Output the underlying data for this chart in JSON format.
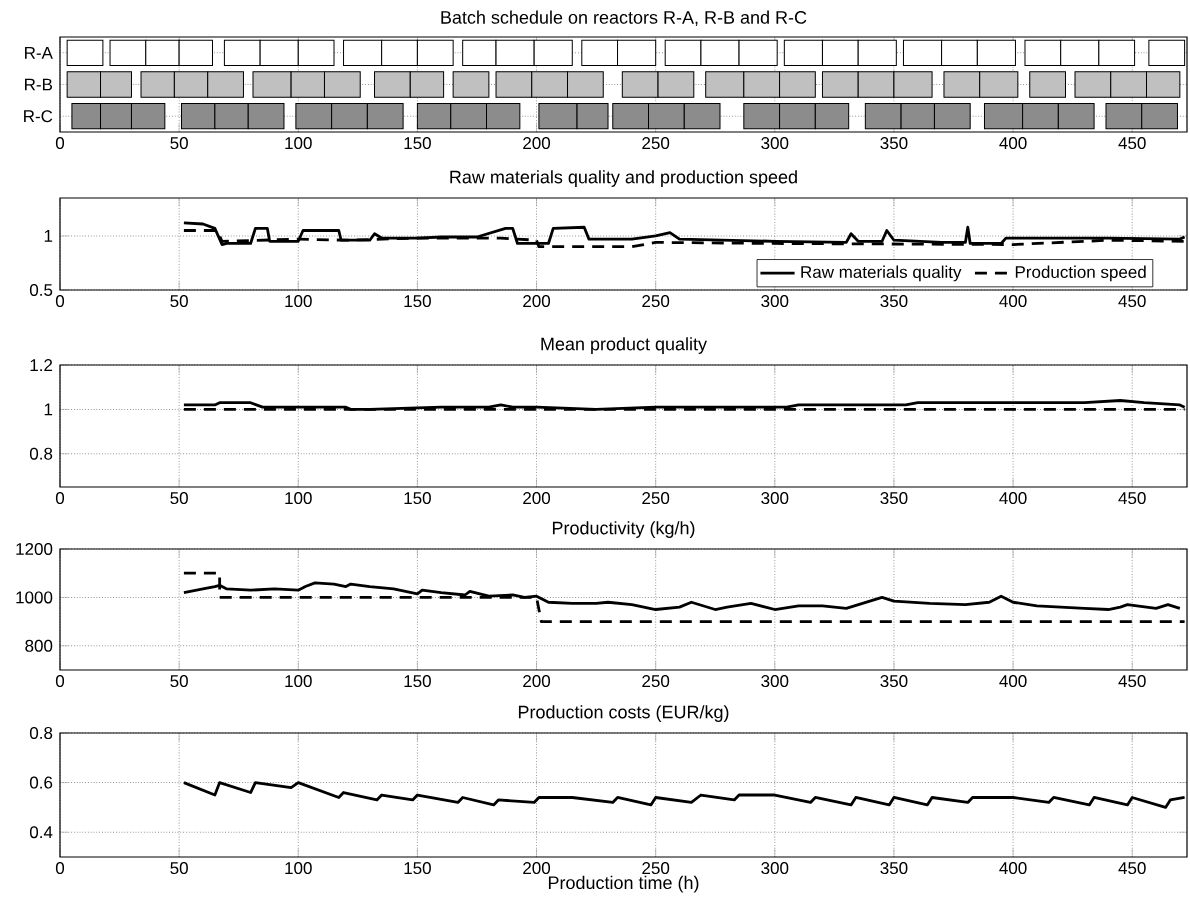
{
  "chart_data": [
    {
      "type": "bar",
      "orientation": "horizontal",
      "title": "Batch schedule on reactors R-A, R-B and R-C",
      "categories": [
        "R-A",
        "R-B",
        "R-C"
      ],
      "xlim": [
        0,
        473
      ],
      "xticks": [
        0,
        50,
        100,
        150,
        200,
        250,
        300,
        350,
        400,
        450
      ],
      "grid": true,
      "series": [
        {
          "base": [
            3,
            3,
            5
          ],
          "values": [
            15,
            14,
            12
          ],
          "colors": [
            "#ffffff",
            "#c0c0c0",
            "#8c8c8c"
          ]
        },
        {
          "base": [
            21,
            17,
            17
          ],
          "values": [
            15,
            13,
            13
          ],
          "colors": [
            "#ffffff",
            "#c0c0c0",
            "#8c8c8c"
          ]
        },
        {
          "base": [
            36,
            34,
            30
          ],
          "values": [
            14,
            14,
            14
          ],
          "colors": [
            "#ffffff",
            "#c0c0c0",
            "#8c8c8c"
          ]
        },
        {
          "base": [
            50,
            48,
            51
          ],
          "values": [
            14,
            14,
            14
          ],
          "colors": [
            "#ffffff",
            "#c0c0c0",
            "#8c8c8c"
          ]
        },
        {
          "base": [
            69,
            62,
            65
          ],
          "values": [
            15,
            15,
            14
          ],
          "colors": [
            "#ffffff",
            "#c0c0c0",
            "#8c8c8c"
          ]
        },
        {
          "base": [
            84,
            81,
            79
          ],
          "values": [
            16,
            16,
            15
          ],
          "colors": [
            "#ffffff",
            "#c0c0c0",
            "#8c8c8c"
          ]
        },
        {
          "base": [
            100,
            97,
            99
          ],
          "values": [
            15,
            14,
            15
          ],
          "colors": [
            "#ffffff",
            "#c0c0c0",
            "#8c8c8c"
          ]
        },
        {
          "base": [
            119,
            111,
            114
          ],
          "values": [
            16,
            15,
            15
          ],
          "colors": [
            "#ffffff",
            "#c0c0c0",
            "#8c8c8c"
          ]
        },
        {
          "base": [
            135,
            132,
            129
          ],
          "values": [
            15,
            15,
            15
          ],
          "colors": [
            "#ffffff",
            "#c0c0c0",
            "#8c8c8c"
          ]
        },
        {
          "base": [
            150,
            147,
            150
          ],
          "values": [
            15,
            14,
            14
          ],
          "colors": [
            "#ffffff",
            "#c0c0c0",
            "#8c8c8c"
          ]
        },
        {
          "base": [
            169,
            165,
            164
          ],
          "values": [
            14,
            15,
            15
          ],
          "colors": [
            "#ffffff",
            "#c0c0c0",
            "#8c8c8c"
          ]
        },
        {
          "base": [
            183,
            183,
            179
          ],
          "values": [
            16,
            15,
            14
          ],
          "colors": [
            "#ffffff",
            "#c0c0c0",
            "#8c8c8c"
          ]
        },
        {
          "base": [
            199,
            198,
            201
          ],
          "values": [
            16,
            15,
            16
          ],
          "colors": [
            "#ffffff",
            "#c0c0c0",
            "#8c8c8c"
          ]
        },
        {
          "base": [
            219,
            213,
            217
          ],
          "values": [
            15,
            15,
            13
          ],
          "colors": [
            "#ffffff",
            "#c0c0c0",
            "#8c8c8c"
          ]
        },
        {
          "base": [
            234,
            236,
            232
          ],
          "values": [
            16,
            15,
            15
          ],
          "colors": [
            "#ffffff",
            "#c0c0c0",
            "#8c8c8c"
          ]
        },
        {
          "base": [
            254,
            251,
            247
          ],
          "values": [
            15,
            15,
            15
          ],
          "colors": [
            "#ffffff",
            "#c0c0c0",
            "#8c8c8c"
          ]
        },
        {
          "base": [
            269,
            271,
            262
          ],
          "values": [
            16,
            16,
            15
          ],
          "colors": [
            "#ffffff",
            "#c0c0c0",
            "#8c8c8c"
          ]
        },
        {
          "base": [
            285,
            287,
            287
          ],
          "values": [
            16,
            15,
            15
          ],
          "colors": [
            "#ffffff",
            "#c0c0c0",
            "#8c8c8c"
          ]
        },
        {
          "base": [
            304,
            302,
            302
          ],
          "values": [
            16,
            15,
            15
          ],
          "colors": [
            "#ffffff",
            "#c0c0c0",
            "#8c8c8c"
          ]
        },
        {
          "base": [
            320,
            320,
            317
          ],
          "values": [
            15,
            15,
            14
          ],
          "colors": [
            "#ffffff",
            "#c0c0c0",
            "#8c8c8c"
          ]
        },
        {
          "base": [
            335,
            335,
            338
          ],
          "values": [
            16,
            15,
            15
          ],
          "colors": [
            "#ffffff",
            "#c0c0c0",
            "#8c8c8c"
          ]
        },
        {
          "base": [
            354,
            350,
            353
          ],
          "values": [
            16,
            16,
            14
          ],
          "colors": [
            "#ffffff",
            "#c0c0c0",
            "#8c8c8c"
          ]
        },
        {
          "base": [
            370,
            371,
            367
          ],
          "values": [
            15,
            15,
            15
          ],
          "colors": [
            "#ffffff",
            "#c0c0c0",
            "#8c8c8c"
          ]
        },
        {
          "base": [
            385,
            386,
            388
          ],
          "values": [
            16,
            16,
            16
          ],
          "colors": [
            "#ffffff",
            "#c0c0c0",
            "#8c8c8c"
          ]
        },
        {
          "base": [
            405,
            407,
            404
          ],
          "values": [
            15,
            15,
            15
          ],
          "colors": [
            "#ffffff",
            "#c0c0c0",
            "#8c8c8c"
          ]
        },
        {
          "base": [
            420,
            426,
            419
          ],
          "values": [
            16,
            15,
            15
          ],
          "colors": [
            "#ffffff",
            "#c0c0c0",
            "#8c8c8c"
          ]
        },
        {
          "base": [
            436,
            441,
            439
          ],
          "values": [
            15,
            15,
            15
          ],
          "colors": [
            "#ffffff",
            "#c0c0c0",
            "#8c8c8c"
          ]
        },
        {
          "base": [
            457,
            456,
            454
          ],
          "values": [
            15,
            14,
            15
          ],
          "colors": [
            "#ffffff",
            "#c0c0c0",
            "#8c8c8c"
          ]
        }
      ]
    },
    {
      "type": "line",
      "title": "Raw materials quality and production speed",
      "xlim": [
        0,
        473
      ],
      "xticks": [
        0,
        50,
        100,
        150,
        200,
        250,
        300,
        350,
        400,
        450
      ],
      "ylim": [
        0.5,
        1.35
      ],
      "yticks": [
        0.5,
        1
      ],
      "grid": true,
      "legend": "bottom right",
      "marker": "none",
      "series": [
        {
          "name": "Raw materials quality",
          "color": "#000000",
          "line_style": "solid",
          "x": [
            52,
            60,
            65,
            68,
            70,
            80,
            82,
            87,
            88,
            100,
            102,
            117,
            118,
            130,
            132,
            135,
            150,
            160,
            175,
            187,
            190,
            192,
            205,
            207,
            220,
            222,
            240,
            250,
            256,
            260,
            280,
            300,
            330,
            332,
            335,
            345,
            347,
            350,
            370,
            380,
            381,
            382,
            395,
            397,
            420,
            440,
            470,
            472
          ],
          "values": [
            1.12,
            1.11,
            1.07,
            0.92,
            0.93,
            0.93,
            1.07,
            1.07,
            0.95,
            0.95,
            1.05,
            1.05,
            0.96,
            0.96,
            1.02,
            0.98,
            0.98,
            0.99,
            0.99,
            1.07,
            1.07,
            0.93,
            0.93,
            1.07,
            1.08,
            0.97,
            0.97,
            1.0,
            1.03,
            0.97,
            0.96,
            0.95,
            0.94,
            1.02,
            0.95,
            0.95,
            1.05,
            0.96,
            0.94,
            0.94,
            1.08,
            0.93,
            0.93,
            0.98,
            0.98,
            0.98,
            0.97,
            0.99
          ]
        },
        {
          "name": "Production speed",
          "color": "#000000",
          "line_style": "dashed",
          "x": [
            52,
            66,
            68,
            100,
            120,
            150,
            185,
            200,
            201,
            240,
            250,
            300,
            400,
            440,
            472
          ],
          "values": [
            1.05,
            1.05,
            0.95,
            0.97,
            0.96,
            0.98,
            0.98,
            0.96,
            0.9,
            0.9,
            0.94,
            0.93,
            0.92,
            0.96,
            0.95
          ]
        }
      ]
    },
    {
      "type": "line",
      "title": "Mean product quality",
      "xlim": [
        0,
        473
      ],
      "xticks": [
        0,
        50,
        100,
        150,
        200,
        250,
        300,
        350,
        400,
        450
      ],
      "ylim": [
        0.65,
        1.2
      ],
      "yticks": [
        0.8,
        1,
        1.2
      ],
      "grid": true,
      "marker": "none",
      "series": [
        {
          "color": "#000000",
          "line_style": "solid",
          "x": [
            52,
            65,
            67,
            80,
            85,
            100,
            120,
            122,
            130,
            160,
            180,
            185,
            190,
            200,
            225,
            250,
            280,
            305,
            310,
            330,
            350,
            355,
            360,
            400,
            430,
            445,
            455,
            470,
            472
          ],
          "values": [
            1.02,
            1.02,
            1.03,
            1.03,
            1.01,
            1.01,
            1.01,
            1.0,
            1.0,
            1.01,
            1.01,
            1.02,
            1.01,
            1.01,
            1.0,
            1.01,
            1.01,
            1.01,
            1.02,
            1.02,
            1.02,
            1.02,
            1.03,
            1.03,
            1.03,
            1.04,
            1.03,
            1.02,
            1.01
          ]
        },
        {
          "color": "#000000",
          "line_style": "dashed",
          "x": [
            52,
            472
          ],
          "values": [
            1.0,
            1.0
          ]
        }
      ]
    },
    {
      "type": "line",
      "title": "Productivity (kg/h)",
      "xlim": [
        0,
        473
      ],
      "xticks": [
        0,
        50,
        100,
        150,
        200,
        250,
        300,
        350,
        400,
        450
      ],
      "ylim": [
        700,
        1200
      ],
      "yticks": [
        800,
        1000,
        1200
      ],
      "grid": true,
      "marker": "none",
      "series": [
        {
          "color": "#000000",
          "line_style": "solid",
          "x": [
            52,
            60,
            65,
            67,
            70,
            80,
            90,
            100,
            103,
            107,
            115,
            120,
            122,
            130,
            140,
            150,
            152,
            160,
            170,
            172,
            180,
            190,
            195,
            200,
            205,
            215,
            225,
            230,
            240,
            250,
            260,
            265,
            275,
            280,
            290,
            300,
            310,
            320,
            330,
            345,
            350,
            365,
            380,
            390,
            395,
            400,
            410,
            420,
            430,
            440,
            445,
            448,
            460,
            465,
            470
          ],
          "values": [
            1020,
            1035,
            1045,
            1050,
            1035,
            1030,
            1035,
            1030,
            1045,
            1060,
            1055,
            1045,
            1055,
            1045,
            1035,
            1015,
            1030,
            1020,
            1010,
            1025,
            1005,
            1010,
            1000,
            1005,
            980,
            975,
            975,
            980,
            970,
            950,
            960,
            980,
            950,
            960,
            975,
            950,
            965,
            965,
            955,
            1000,
            985,
            975,
            970,
            980,
            1005,
            980,
            965,
            960,
            955,
            950,
            960,
            970,
            955,
            970,
            955
          ]
        },
        {
          "color": "#000000",
          "line_style": "dashed",
          "x": [
            52,
            67,
            67,
            200,
            202,
            472
          ],
          "values": [
            1100,
            1100,
            1000,
            1000,
            900,
            900
          ]
        }
      ]
    },
    {
      "type": "line",
      "title": "Production costs (EUR/kg)",
      "xlabel": "Production time (h)",
      "xlim": [
        0,
        473
      ],
      "xticks": [
        0,
        50,
        100,
        150,
        200,
        250,
        300,
        350,
        400,
        450
      ],
      "ylim": [
        0.3,
        0.8
      ],
      "yticks": [
        0.4,
        0.6,
        0.8
      ],
      "grid": true,
      "marker": "none",
      "series": [
        {
          "color": "#000000",
          "line_style": "solid",
          "x": [
            52,
            65,
            67,
            80,
            82,
            97,
            100,
            117,
            119,
            133,
            135,
            148,
            150,
            167,
            169,
            182,
            184,
            199,
            201,
            215,
            232,
            234,
            248,
            250,
            265,
            269,
            283,
            285,
            300,
            315,
            317,
            332,
            334,
            348,
            350,
            364,
            366,
            381,
            383,
            400,
            415,
            417,
            432,
            434,
            448,
            450,
            464,
            466,
            472
          ],
          "values": [
            0.6,
            0.55,
            0.6,
            0.56,
            0.6,
            0.58,
            0.6,
            0.54,
            0.56,
            0.53,
            0.55,
            0.53,
            0.55,
            0.52,
            0.54,
            0.51,
            0.53,
            0.52,
            0.54,
            0.54,
            0.52,
            0.54,
            0.51,
            0.54,
            0.52,
            0.55,
            0.53,
            0.55,
            0.55,
            0.52,
            0.54,
            0.51,
            0.54,
            0.51,
            0.54,
            0.51,
            0.54,
            0.52,
            0.54,
            0.54,
            0.52,
            0.54,
            0.51,
            0.54,
            0.51,
            0.54,
            0.5,
            0.53,
            0.54
          ]
        }
      ]
    }
  ]
}
